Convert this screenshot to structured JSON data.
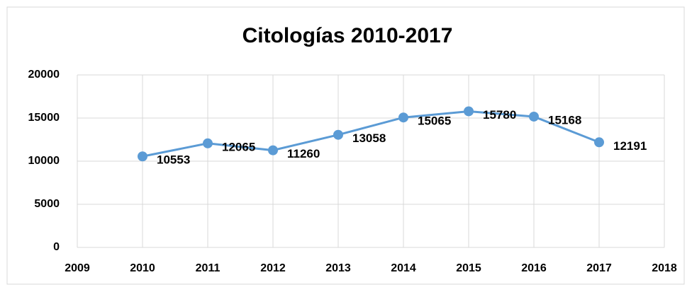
{
  "chart_data": {
    "type": "line",
    "title": "Citologías 2010-2017",
    "x": [
      2010,
      2011,
      2012,
      2013,
      2014,
      2015,
      2016,
      2017
    ],
    "series": [
      {
        "name": "Citologías",
        "color": "#5b9bd5",
        "values": [
          10553,
          12065,
          11260,
          13058,
          15065,
          15780,
          15168,
          12191
        ]
      }
    ],
    "xlim": [
      2009,
      2018
    ],
    "xticks": [
      2009,
      2010,
      2011,
      2012,
      2013,
      2014,
      2015,
      2016,
      2017,
      2018
    ],
    "ylim": [
      0,
      20000
    ],
    "yticks": [
      0,
      5000,
      10000,
      15000,
      20000
    ],
    "grid": true,
    "data_labels": true
  }
}
